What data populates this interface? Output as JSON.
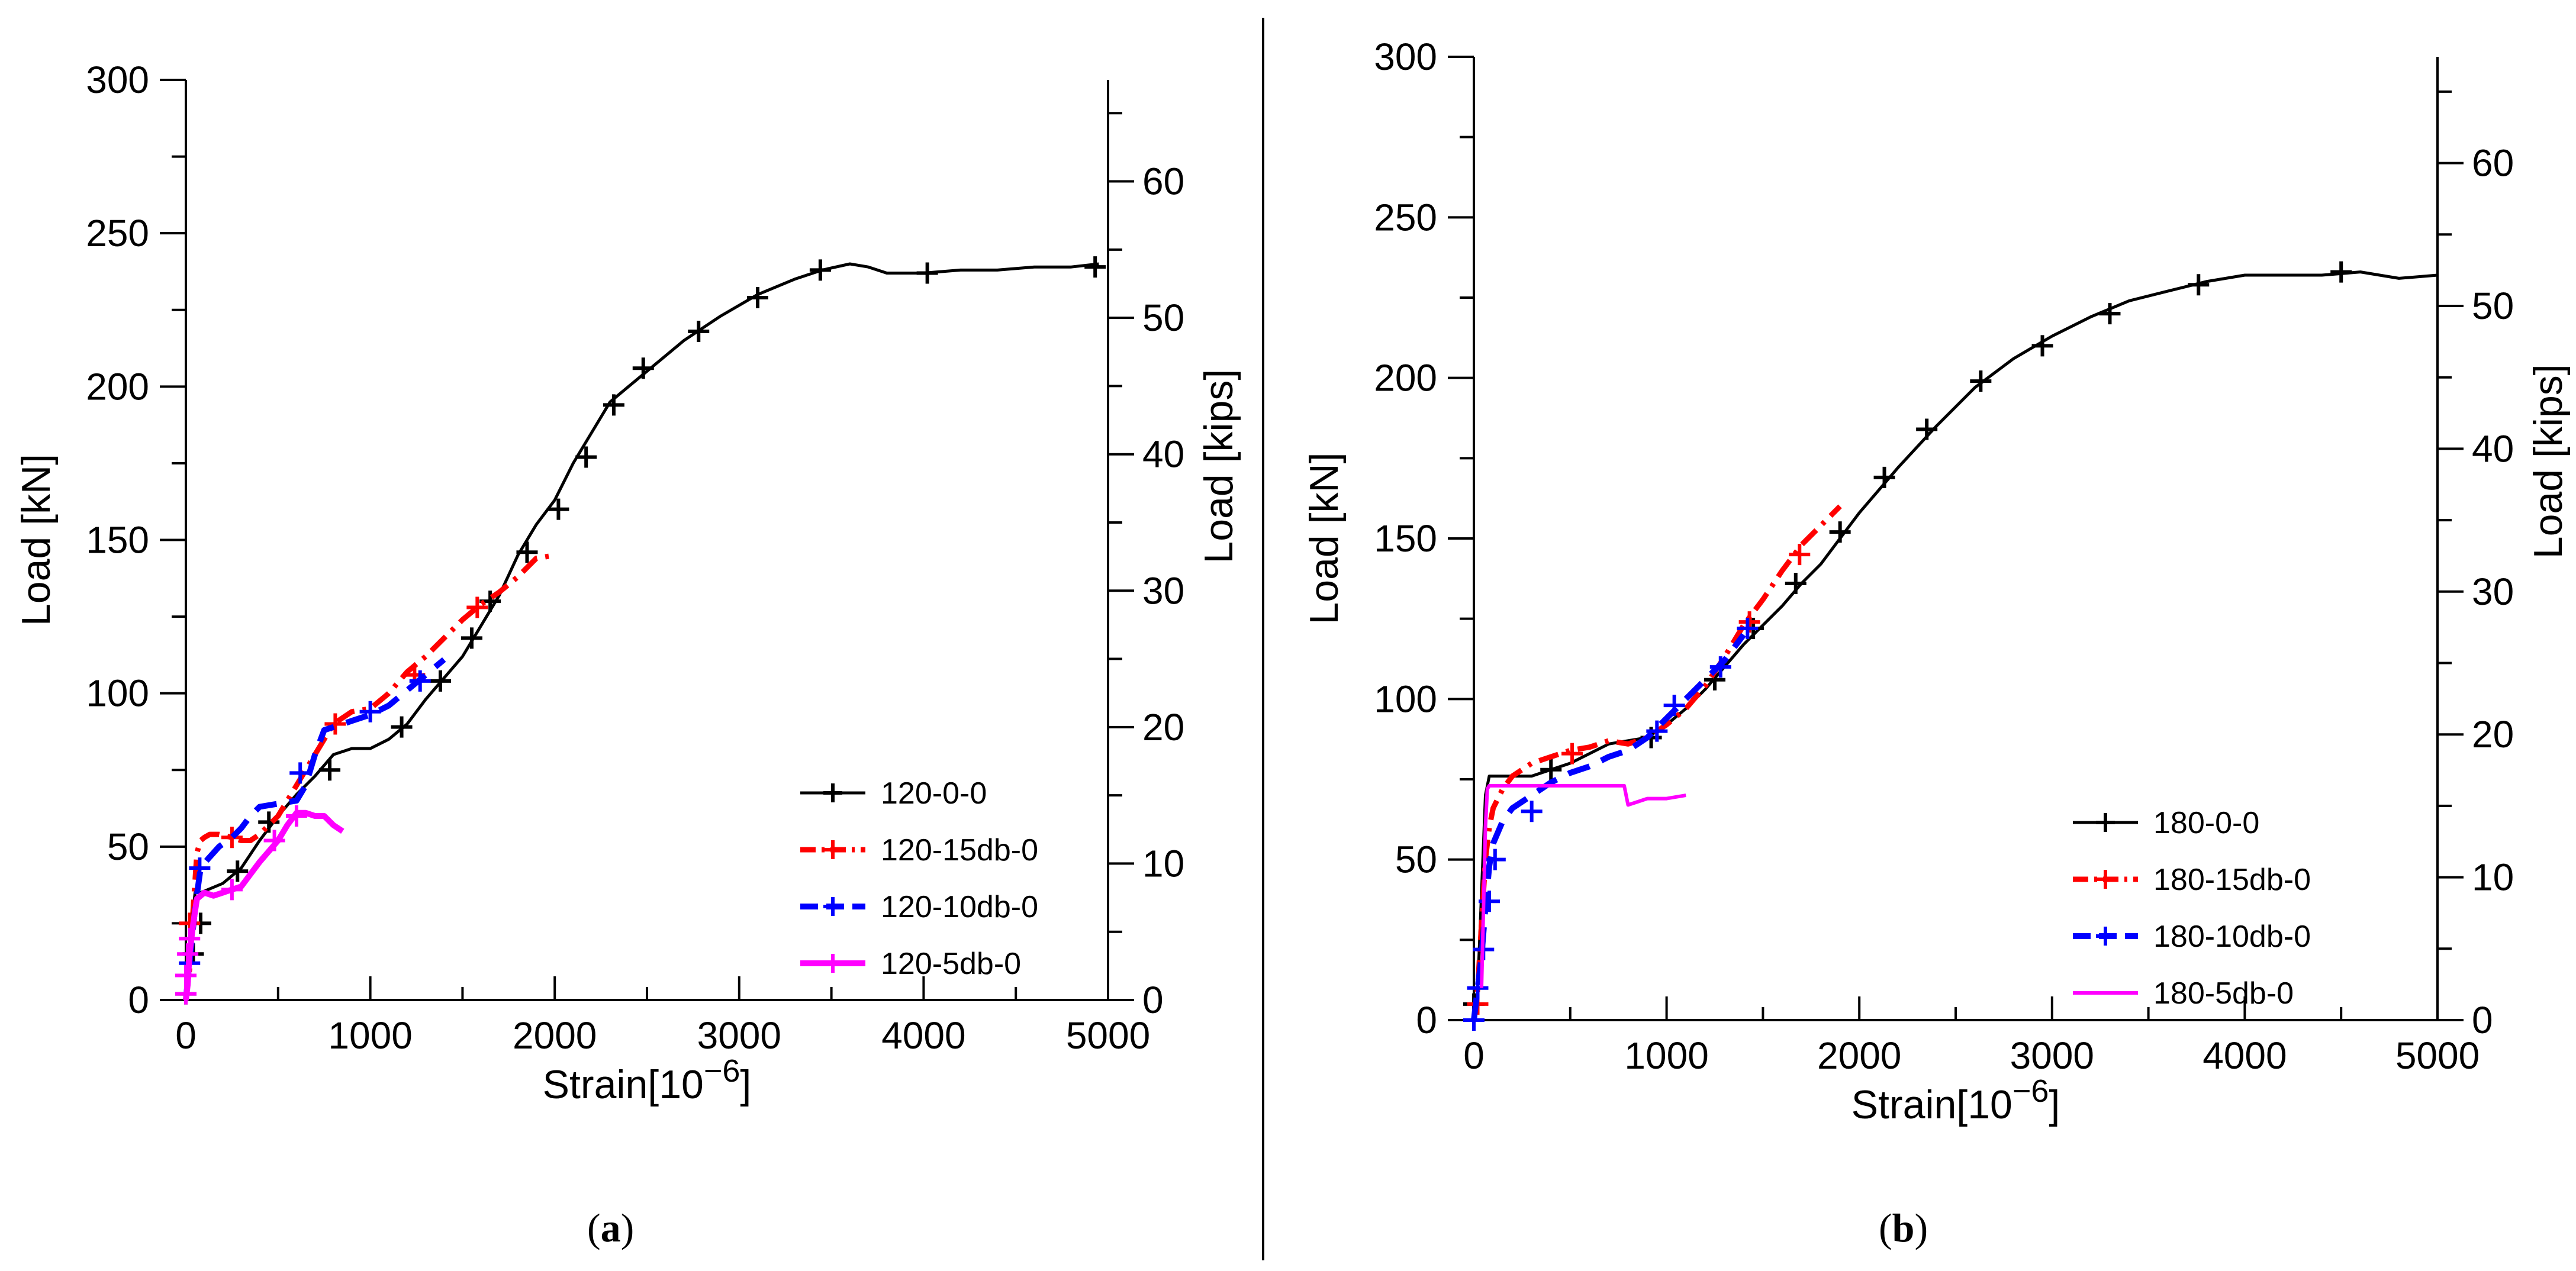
{
  "figure": {
    "panel_a_label": {
      "open": "(",
      "letter": "a",
      "close": ")"
    },
    "panel_b_label": {
      "open": "(",
      "letter": "b",
      "close": ")"
    }
  },
  "chart_data": [
    {
      "type": "line",
      "panel": "a",
      "xlabel": "Strain[10",
      "xlabel_exp": "−6",
      "xlabel_end": "]",
      "ylabel": "Load [kN]",
      "y2label": "Load [kips]",
      "xlim": [
        0,
        5000
      ],
      "ylim": [
        0,
        300
      ],
      "y2lim": [
        0,
        67.44
      ],
      "xticks": [
        0,
        1000,
        2000,
        3000,
        4000,
        5000
      ],
      "yticks": [
        0,
        50,
        100,
        150,
        200,
        250,
        300
      ],
      "y2ticks": [
        0,
        10,
        20,
        30,
        40,
        50,
        60
      ],
      "grid": false,
      "legend_position": "bottom-right",
      "series": [
        {
          "name": "120-0-0",
          "color": "#000000",
          "style": "solid",
          "width": 5,
          "x": [
            0,
            15,
            30,
            50,
            80,
            120,
            200,
            300,
            400,
            500,
            600,
            700,
            800,
            900,
            1000,
            1100,
            1200,
            1300,
            1400,
            1500,
            1600,
            1700,
            1800,
            1900,
            2000,
            2100,
            2200,
            2300,
            2400,
            2500,
            2700,
            2900,
            3100,
            3300,
            3450,
            3600,
            3700,
            3800,
            3900,
            4000,
            4200,
            4400,
            4600,
            4800,
            4950
          ],
          "y": [
            0,
            10,
            25,
            35,
            35,
            36,
            38,
            43,
            52,
            60,
            67,
            73,
            80,
            82,
            82,
            85,
            90,
            98,
            105,
            112,
            122,
            132,
            145,
            155,
            163,
            175,
            185,
            195,
            200,
            205,
            215,
            223,
            230,
            235,
            238,
            240,
            239,
            237,
            237,
            237,
            238,
            238,
            239,
            239,
            240
          ],
          "mx": [
            0,
            40,
            80,
            280,
            450,
            780,
            1170,
            1380,
            1550,
            1650,
            1850,
            2020,
            2170,
            2320,
            2480,
            2780,
            3100,
            3440,
            4020,
            4930
          ],
          "my": [
            2,
            15,
            25,
            42,
            58,
            75,
            89,
            104,
            118,
            130,
            146,
            160,
            177,
            194,
            206,
            218,
            229,
            238,
            237,
            239
          ]
        },
        {
          "name": "120-15db-0",
          "color": "#ff0000",
          "style": "dashdot",
          "width": 9,
          "x": [
            0,
            20,
            40,
            60,
            80,
            100,
            130,
            180,
            250,
            300,
            350,
            400,
            500,
            600,
            700,
            800,
            900,
            1000,
            1100,
            1200,
            1300,
            1400,
            1500,
            1600,
            1700,
            1800,
            1900,
            2000
          ],
          "y": [
            0,
            10,
            30,
            48,
            52,
            53,
            54,
            54,
            53,
            52,
            52,
            54,
            60,
            70,
            80,
            90,
            94,
            95,
            100,
            107,
            112,
            118,
            124,
            129,
            133,
            138,
            144,
            145
          ],
          "mx": [
            20,
            250,
            810,
            1240,
            1580
          ],
          "my": [
            25,
            53,
            90,
            106,
            128
          ]
        },
        {
          "name": "120-10db-0",
          "color": "#0000ff",
          "style": "dashed",
          "width": 10,
          "x": [
            0,
            20,
            50,
            80,
            120,
            180,
            250,
            300,
            350,
            400,
            500,
            600,
            650,
            700,
            750,
            800,
            900,
            1000,
            1100,
            1200,
            1300,
            1400
          ],
          "y": [
            0,
            12,
            30,
            43,
            46,
            50,
            53,
            56,
            60,
            63,
            64,
            65,
            70,
            80,
            88,
            89,
            91,
            93,
            96,
            101,
            106,
            111
          ],
          "mx": [
            20,
            75,
            620,
            1000,
            1270
          ],
          "my": [
            12,
            43,
            74,
            94,
            104
          ]
        },
        {
          "name": "120-5db-0",
          "color": "#ff00ff",
          "style": "solid",
          "width": 10,
          "x": [
            0,
            10,
            20,
            40,
            60,
            100,
            150,
            200,
            250,
            300,
            400,
            500,
            550,
            600,
            650,
            700,
            750,
            800,
            850
          ],
          "y": [
            0,
            5,
            15,
            25,
            33,
            35,
            34,
            35,
            36,
            37,
            45,
            52,
            57,
            61,
            61,
            60,
            60,
            57,
            55
          ],
          "mx": [
            0,
            0,
            10,
            20,
            250,
            480,
            600
          ],
          "my": [
            2,
            8,
            15,
            20,
            36,
            52,
            60
          ]
        }
      ]
    },
    {
      "type": "line",
      "panel": "b",
      "xlabel": "Strain[10",
      "xlabel_exp": "−6",
      "xlabel_end": "]",
      "ylabel": "Load [kN]",
      "y2label": "Load [kips]",
      "xlim": [
        0,
        5000
      ],
      "ylim": [
        0,
        300
      ],
      "y2lim": [
        0,
        67.44
      ],
      "xticks": [
        0,
        1000,
        2000,
        3000,
        4000,
        5000
      ],
      "yticks": [
        0,
        50,
        100,
        150,
        200,
        250,
        300
      ],
      "y2ticks": [
        0,
        10,
        20,
        30,
        40,
        50,
        60
      ],
      "grid": false,
      "legend_position": "bottom-right",
      "series": [
        {
          "name": "180-0-0",
          "color": "#000000",
          "style": "solid",
          "width": 5,
          "x": [
            0,
            20,
            40,
            60,
            80,
            100,
            200,
            300,
            400,
            500,
            600,
            700,
            800,
            900,
            1000,
            1100,
            1200,
            1300,
            1400,
            1500,
            1600,
            1700,
            1800,
            1900,
            2000,
            2100,
            2200,
            2400,
            2600,
            2800,
            3000,
            3200,
            3400,
            3600,
            3800,
            4000,
            4200,
            4400,
            4600,
            4800,
            5000
          ],
          "y": [
            0,
            10,
            40,
            70,
            76,
            76,
            76,
            76,
            78,
            80,
            83,
            86,
            87,
            88,
            92,
            97,
            103,
            110,
            117,
            123,
            129,
            136,
            142,
            150,
            158,
            165,
            172,
            185,
            197,
            206,
            213,
            219,
            224,
            227,
            230,
            232,
            232,
            232,
            233,
            231,
            232
          ],
          "mx": [
            0,
            400,
            920,
            1250,
            1450,
            1670,
            1900,
            2130,
            2350,
            2630,
            2950,
            3300,
            3760,
            4500
          ],
          "my": [
            5,
            78,
            88,
            106,
            122,
            136,
            152,
            169,
            184,
            199,
            210,
            220,
            229,
            233
          ]
        },
        {
          "name": "180-15db-0",
          "color": "#ff0000",
          "style": "dashdot",
          "width": 9,
          "x": [
            0,
            20,
            40,
            60,
            80,
            100,
            150,
            200,
            300,
            400,
            500,
            600,
            700,
            800,
            900,
            1000,
            1100,
            1200,
            1300,
            1400,
            1500,
            1600,
            1700,
            1800,
            1900
          ],
          "y": [
            0,
            10,
            30,
            50,
            60,
            66,
            72,
            76,
            80,
            82,
            84,
            85,
            87,
            86,
            88,
            92,
            97,
            104,
            113,
            123,
            131,
            140,
            148,
            154,
            160
          ],
          "mx": [
            20,
            510,
            1430,
            1690
          ],
          "my": [
            5,
            83,
            124,
            145
          ]
        },
        {
          "name": "180-10db-0",
          "color": "#0000ff",
          "style": "dashed",
          "width": 10,
          "x": [
            0,
            20,
            40,
            60,
            80,
            100,
            150,
            200,
            300,
            400,
            500,
            600,
            700,
            800,
            900,
            1000,
            1100,
            1200,
            1300,
            1400
          ],
          "y": [
            0,
            10,
            20,
            35,
            48,
            55,
            62,
            66,
            70,
            74,
            77,
            79,
            82,
            84,
            88,
            94,
            100,
            106,
            112,
            120
          ],
          "mx": [
            0,
            20,
            50,
            80,
            110,
            300,
            950,
            1040,
            1280,
            1420
          ],
          "my": [
            0,
            10,
            22,
            37,
            50,
            65,
            90,
            98,
            110,
            122
          ]
        },
        {
          "name": "180-5db-0",
          "color": "#ff00ff",
          "style": "solid",
          "width": 6,
          "x": [
            40,
            50,
            60,
            70,
            80,
            200,
            400,
            600,
            780,
            800,
            850,
            900,
            1000,
            1100
          ],
          "y": [
            10,
            35,
            60,
            72,
            73,
            73,
            73,
            73,
            73,
            67,
            68,
            69,
            69,
            70
          ],
          "mx": [],
          "my": []
        }
      ]
    }
  ]
}
